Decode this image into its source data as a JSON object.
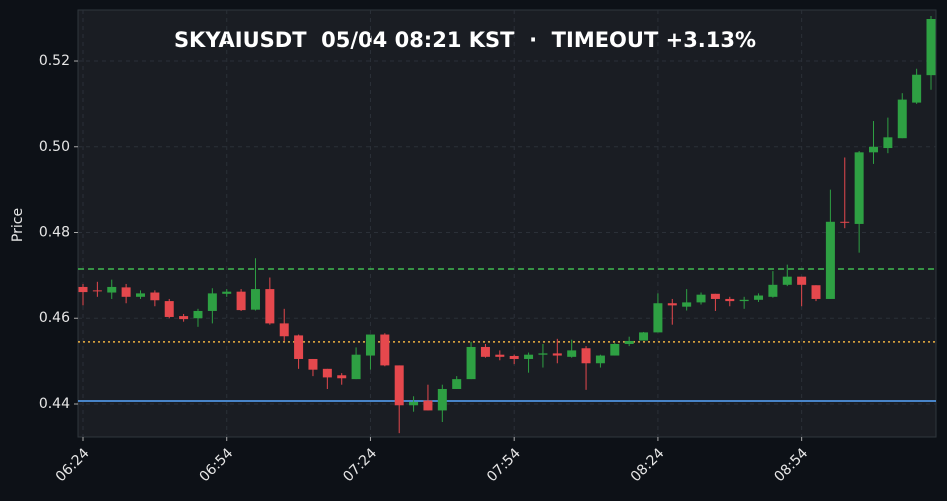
{
  "chart_data": {
    "type": "candlestick",
    "title": "SKYAIUSDT  05/04 08:21 KST  ·  TIMEOUT +3.13%",
    "y_label": "Price",
    "categories": [
      "06:24",
      null,
      null,
      null,
      null,
      null,
      null,
      null,
      null,
      null,
      "06:54",
      null,
      null,
      null,
      null,
      null,
      null,
      null,
      null,
      null,
      "07:24",
      null,
      null,
      null,
      null,
      null,
      null,
      null,
      null,
      null,
      "07:54",
      null,
      null,
      null,
      null,
      null,
      null,
      null,
      null,
      null,
      "08:24",
      null,
      null,
      null,
      null,
      null,
      null,
      null,
      null,
      null,
      "08:54",
      null,
      null,
      null,
      null,
      null,
      null,
      null,
      null,
      null
    ],
    "open": [
      0.4673,
      0.4665,
      0.466,
      0.4672,
      0.465,
      0.466,
      0.464,
      0.4605,
      0.46,
      0.4617,
      0.4657,
      0.4662,
      0.462,
      0.4668,
      0.4588,
      0.456,
      0.4505,
      0.4482,
      0.4467,
      0.4458,
      0.4513,
      0.4562,
      0.449,
      0.4397,
      0.4408,
      0.4385,
      0.4435,
      0.4458,
      0.4533,
      0.4515,
      0.4512,
      0.4505,
      0.4515,
      0.4518,
      0.451,
      0.453,
      0.4495,
      0.4513,
      0.454,
      0.4548,
      0.4567,
      0.4635,
      0.4627,
      0.4637,
      0.4657,
      0.4645,
      0.464,
      0.4643,
      0.465,
      0.4678,
      0.4697,
      0.4677,
      0.4645,
      0.4825,
      0.482,
      0.4987,
      0.4997,
      0.502,
      0.5103,
      0.5167
    ],
    "high": [
      0.468,
      0.4685,
      0.469,
      0.468,
      0.4665,
      0.4665,
      0.4645,
      0.461,
      0.4622,
      0.467,
      0.4668,
      0.4668,
      0.474,
      0.4695,
      0.4622,
      0.4562,
      0.4505,
      0.4482,
      0.4472,
      0.4532,
      0.4562,
      0.4565,
      0.449,
      0.4418,
      0.4445,
      0.4445,
      0.4465,
      0.4545,
      0.454,
      0.4525,
      0.4515,
      0.452,
      0.454,
      0.4552,
      0.455,
      0.4535,
      0.4515,
      0.4542,
      0.4557,
      0.4568,
      0.4658,
      0.4645,
      0.4668,
      0.466,
      0.4657,
      0.465,
      0.465,
      0.4658,
      0.471,
      0.4725,
      0.4697,
      0.4677,
      0.49,
      0.4975,
      0.499,
      0.506,
      0.5068,
      0.5125,
      0.5182,
      0.5305
    ],
    "low": [
      0.463,
      0.465,
      0.4645,
      0.4635,
      0.4645,
      0.4628,
      0.46,
      0.4592,
      0.458,
      0.4588,
      0.465,
      0.4617,
      0.4618,
      0.4585,
      0.4547,
      0.4482,
      0.4465,
      0.4435,
      0.4445,
      0.4458,
      0.448,
      0.4488,
      0.4332,
      0.4382,
      0.4385,
      0.4358,
      0.4435,
      0.4458,
      0.4508,
      0.4502,
      0.4493,
      0.4473,
      0.4485,
      0.4495,
      0.4508,
      0.4433,
      0.4485,
      0.4513,
      0.4535,
      0.4548,
      0.4567,
      0.4585,
      0.4618,
      0.4632,
      0.4617,
      0.4628,
      0.4622,
      0.4638,
      0.4648,
      0.4675,
      0.4628,
      0.464,
      0.4645,
      0.481,
      0.4753,
      0.496,
      0.4985,
      0.502,
      0.51,
      0.5133
    ],
    "close": [
      0.4661,
      0.4663,
      0.4673,
      0.465,
      0.4658,
      0.4642,
      0.4603,
      0.4598,
      0.4617,
      0.4658,
      0.4662,
      0.4619,
      0.4668,
      0.4588,
      0.4558,
      0.4505,
      0.448,
      0.4462,
      0.446,
      0.4515,
      0.4562,
      0.449,
      0.4397,
      0.4405,
      0.4385,
      0.4435,
      0.4458,
      0.4533,
      0.451,
      0.451,
      0.4505,
      0.4515,
      0.4518,
      0.4513,
      0.4525,
      0.4495,
      0.4513,
      0.454,
      0.4547,
      0.4567,
      0.4635,
      0.463,
      0.4637,
      0.4655,
      0.4645,
      0.464,
      0.4643,
      0.4653,
      0.4678,
      0.4697,
      0.4678,
      0.4645,
      0.4825,
      0.4823,
      0.4987,
      0.5,
      0.5022,
      0.511,
      0.5168,
      0.5298
    ],
    "up_color": "#2ea043",
    "down_color": "#e5484d",
    "ylim": [
      0.4323,
      0.5319
    ],
    "yticks": [
      0.44,
      0.46,
      0.48,
      {
        "value": 0.5,
        "label": "0.50"
      },
      0.52
    ],
    "grid": true,
    "hlines": [
      {
        "value": 0.4715,
        "color": "#3fb950",
        "style": "dashed"
      },
      {
        "value": 0.4545,
        "color": "#f0b341",
        "style": "dotted"
      },
      {
        "value": 0.4407,
        "color": "#58a6ff",
        "style": "solid"
      }
    ]
  }
}
